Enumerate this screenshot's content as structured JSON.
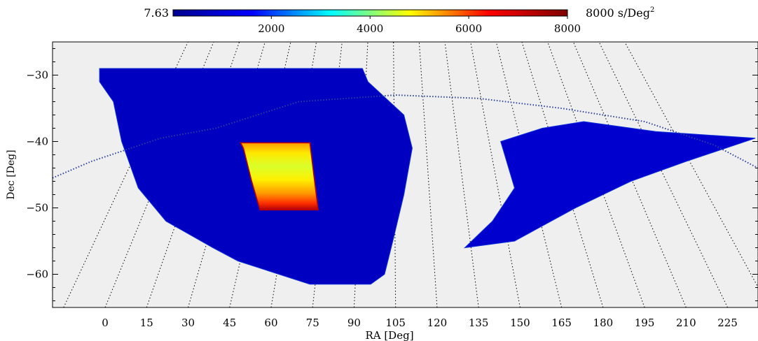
{
  "chart_data": {
    "type": "heatmap",
    "title": "",
    "xlabel": "RA [Deg]",
    "ylabel": "Dec [Deg]",
    "x_unit": "Deg",
    "y_unit": "Deg",
    "xlim": [
      -19,
      236
    ],
    "ylim": [
      -65,
      -25
    ],
    "x_ticks": [
      0,
      15,
      30,
      45,
      60,
      75,
      90,
      105,
      120,
      135,
      150,
      165,
      180,
      195,
      210,
      225
    ],
    "y_ticks": [
      -30,
      -40,
      -50,
      -60
    ],
    "x_tick_labels": [
      "0",
      "15",
      "30",
      "45",
      "60",
      "75",
      "90",
      "105",
      "120",
      "135",
      "150",
      "165",
      "180",
      "195",
      "210",
      "225"
    ],
    "y_tick_labels": [
      "−30",
      "−40",
      "−50",
      "−60"
    ],
    "colorbar": {
      "min": 7.63,
      "max": 8000,
      "min_label": "7.63",
      "max_label": "8000 s/Deg",
      "max_label_superscript": "2",
      "unit": "s/Deg²",
      "ticks": [
        2000,
        4000,
        6000,
        8000
      ],
      "tick_labels": [
        "2000",
        "4000",
        "6000",
        "8000"
      ],
      "colormap": "jet",
      "colors": [
        "#00008f",
        "#0000ff",
        "#00ffff",
        "#ffff00",
        "#ff0000",
        "#800000"
      ]
    },
    "background_color": "#efefef",
    "grid": "dotted RA meridians",
    "regions": [
      {
        "description": "wide field, left",
        "ra_dec_outline": [
          [
            -2,
            -29
          ],
          [
            93,
            -29
          ],
          [
            95,
            -31
          ],
          [
            108,
            -36
          ],
          [
            111,
            -41
          ],
          [
            108,
            -48
          ],
          [
            104,
            -55
          ],
          [
            101,
            -60
          ],
          [
            96,
            -61.5
          ],
          [
            74,
            -61.5
          ],
          [
            48,
            -58
          ],
          [
            39,
            -56
          ],
          [
            22,
            -52
          ],
          [
            12,
            -47
          ],
          [
            6,
            -40
          ],
          [
            3,
            -34
          ],
          [
            -2,
            -31
          ]
        ],
        "typical_value": 700
      },
      {
        "description": "wide field, right",
        "ra_dec_outline": [
          [
            143,
            -40
          ],
          [
            158,
            -38
          ],
          [
            173,
            -37
          ],
          [
            199,
            -38.5
          ],
          [
            235,
            -39.5
          ],
          [
            210,
            -43
          ],
          [
            190,
            -46
          ],
          [
            170,
            -50
          ],
          [
            148,
            -55
          ],
          [
            130,
            -56
          ],
          [
            140,
            -52
          ],
          [
            148,
            -47
          ]
        ],
        "typical_value": 900
      },
      {
        "description": "deep field",
        "ra_dec_outline": [
          [
            49,
            -40.2
          ],
          [
            74,
            -40.2
          ],
          [
            77,
            -50.3
          ],
          [
            56,
            -50.3
          ],
          [
            53,
            -46
          ],
          [
            50,
            -41
          ]
        ],
        "typical_value": 5200,
        "max_value": 8000
      }
    ],
    "annotations": [
      {
        "kind": "dotted great-circle track",
        "points": [
          [
            -19,
            -45.5
          ],
          [
            -5,
            -43
          ],
          [
            20,
            -39.5
          ],
          [
            40,
            -38
          ],
          [
            70,
            -34
          ],
          [
            105,
            -33
          ],
          [
            135,
            -33.5
          ],
          [
            165,
            -35
          ],
          [
            195,
            -37
          ],
          [
            220,
            -40.5
          ],
          [
            236,
            -44
          ]
        ]
      }
    ]
  }
}
